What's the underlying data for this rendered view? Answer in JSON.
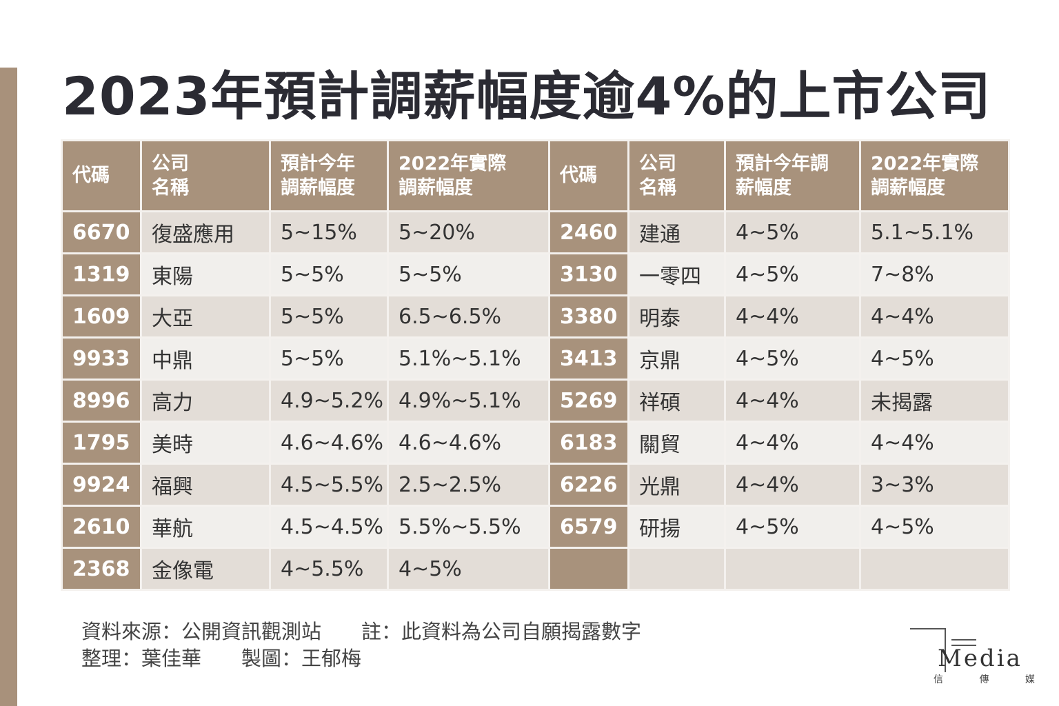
{
  "title": "2023年預計調薪幅度逾4%的上市公司",
  "headers": [
    "代碼",
    "公司\n名稱",
    "預計今年\n調薪幅度",
    "2022年實際\n調薪幅度",
    "代碼",
    "公司\n名稱",
    "預計今年調\n薪幅度",
    "2022年實際\n調薪幅度"
  ],
  "rows": [
    [
      "6670",
      "復盛應用",
      "5~15%",
      "5~20%",
      "2460",
      "建通",
      "4~5%",
      "5.1~5.1%"
    ],
    [
      "1319",
      "東陽",
      "5~5%",
      "5~5%",
      "3130",
      "一零四",
      "4~5%",
      "7~8%"
    ],
    [
      "1609",
      "大亞",
      "5~5%",
      "6.5~6.5%",
      "3380",
      "明泰",
      "4~4%",
      "4~4%"
    ],
    [
      "9933",
      "中鼎",
      "5~5%",
      "5.1%~5.1%",
      "3413",
      "京鼎",
      "4~5%",
      "4~5%"
    ],
    [
      "8996",
      "高力",
      "4.9~5.2%",
      "4.9%~5.1%",
      "5269",
      "祥碩",
      "4~4%",
      "未揭露"
    ],
    [
      "1795",
      "美時",
      "4.6~4.6%",
      "4.6~4.6%",
      "6183",
      "關貿",
      "4~4%",
      "4~4%"
    ],
    [
      "9924",
      "福興",
      "4.5~5.5%",
      "2.5~2.5%",
      "6226",
      "光鼎",
      "4~4%",
      "3~3%"
    ],
    [
      "2610",
      "華航",
      "4.5~4.5%",
      "5.5%~5.5%",
      "6579",
      "研揚",
      "4~5%",
      "4~5%"
    ],
    [
      "2368",
      "金像電",
      "4~5.5%",
      "4~5%",
      "",
      "",
      "",
      ""
    ]
  ],
  "footer": {
    "line1": "資料來源：公開資訊觀測站　　註：此資料為公司自願揭露數字",
    "line2": "整理：葉佳華　　製圖：王郁梅"
  },
  "logo": {
    "brand": "Media",
    "chinese": "信 傳 媒"
  }
}
